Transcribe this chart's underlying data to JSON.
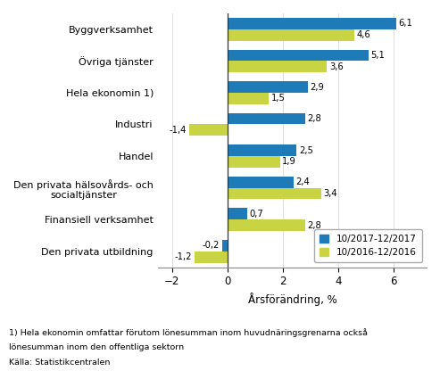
{
  "categories": [
    "Byggverksamhet",
    "Övriga tjänster",
    "Hela ekonomin 1)",
    "Industri",
    "Handel",
    "Den privata hälsovårds- och\nsocialtjänster",
    "Finansiell verksamhet",
    "Den privata utbildning"
  ],
  "series1_label": "10/2017-12/2017",
  "series2_label": "10/2016-12/2016",
  "series1_values": [
    6.1,
    5.1,
    2.9,
    2.8,
    2.5,
    2.4,
    0.7,
    -0.2
  ],
  "series2_values": [
    4.6,
    3.6,
    1.5,
    -1.4,
    1.9,
    3.4,
    2.8,
    -1.2
  ],
  "series1_color": "#1F7BB8",
  "series2_color": "#C8D444",
  "xlabel": "Årsförändring, %",
  "xlim": [
    -2.5,
    7.2
  ],
  "xticks": [
    -2,
    0,
    2,
    4,
    6
  ],
  "footnote1": "1) Hela ekonomin omfattar förutom lönesumman inom huvudnäringsgrenarna också",
  "footnote2": "lönesumman inom den offentliga sektorn",
  "footnote3": "Källa: Statistikcentralen",
  "bar_height": 0.36,
  "background_color": "#ffffff"
}
